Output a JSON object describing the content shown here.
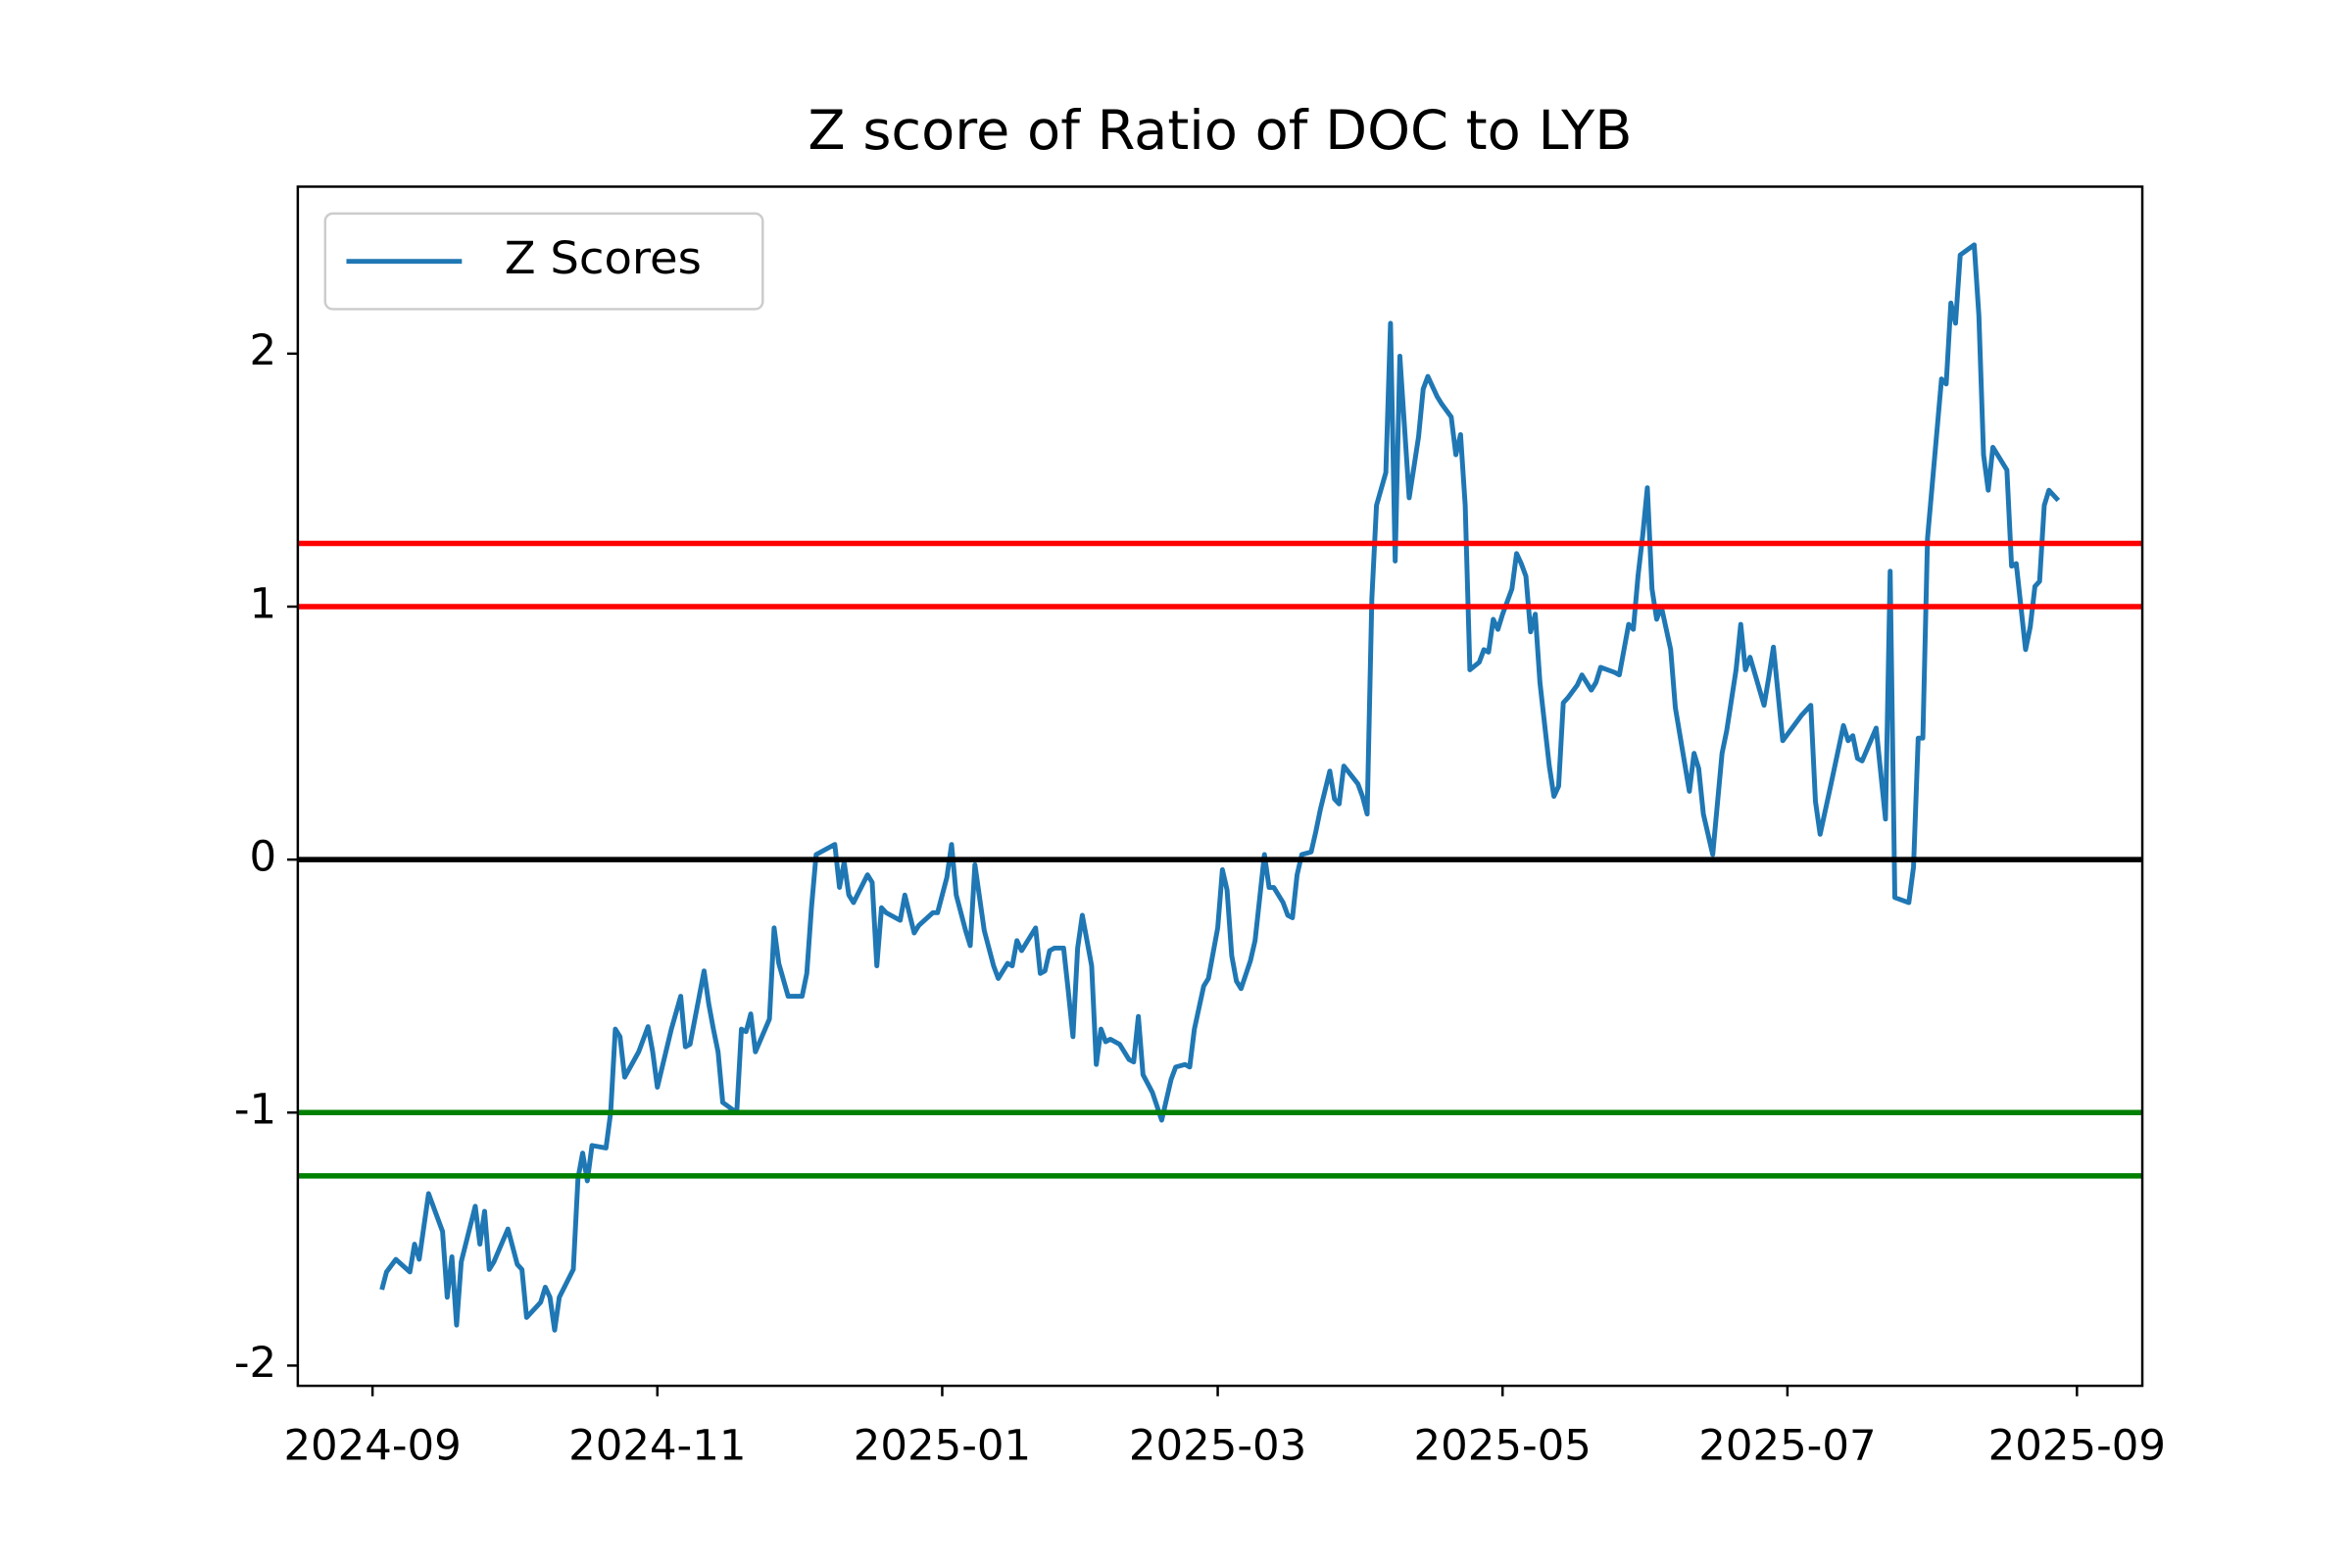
{
  "chart_data": {
    "type": "line",
    "title": "Z score of Ratio of DOC to LYB",
    "legend": "upper left",
    "xlim": [
      "2024-08-16",
      "2025-09-15"
    ],
    "ylim": [
      -2.08,
      2.66
    ],
    "xticks": [
      {
        "value": "2024-09-01",
        "label": "2024-09"
      },
      {
        "value": "2024-11-01",
        "label": "2024-11"
      },
      {
        "value": "2025-01-01",
        "label": "2025-01"
      },
      {
        "value": "2025-03-01",
        "label": "2025-03"
      },
      {
        "value": "2025-05-01",
        "label": "2025-05"
      },
      {
        "value": "2025-07-01",
        "label": "2025-07"
      },
      {
        "value": "2025-09-01",
        "label": "2025-09"
      }
    ],
    "yticks": [
      -2,
      -1,
      0,
      1,
      2
    ],
    "hlines": [
      {
        "value": 0,
        "color": "#000000"
      },
      {
        "value": 1.0,
        "color": "#ff0000"
      },
      {
        "value": 1.25,
        "color": "#ff0000"
      },
      {
        "value": -1.0,
        "color": "#008000"
      },
      {
        "value": -1.25,
        "color": "#008000"
      }
    ],
    "x": [
      "2024-09-03",
      "2024-09-04",
      "2024-09-06",
      "2024-09-09",
      "2024-09-10",
      "2024-09-11",
      "2024-09-13",
      "2024-09-16",
      "2024-09-17",
      "2024-09-18",
      "2024-09-19",
      "2024-09-20",
      "2024-09-23",
      "2024-09-24",
      "2024-09-25",
      "2024-09-26",
      "2024-09-27",
      "2024-09-30",
      "2024-10-02",
      "2024-10-03",
      "2024-10-04",
      "2024-10-07",
      "2024-10-08",
      "2024-10-09",
      "2024-10-10",
      "2024-10-11",
      "2024-10-14",
      "2024-10-15",
      "2024-10-16",
      "2024-10-17",
      "2024-10-18",
      "2024-10-21",
      "2024-10-22",
      "2024-10-23",
      "2024-10-24",
      "2024-10-25",
      "2024-10-28",
      "2024-10-30",
      "2024-10-31",
      "2024-11-01",
      "2024-11-04",
      "2024-11-06",
      "2024-11-07",
      "2024-11-08",
      "2024-11-11",
      "2024-11-12",
      "2024-11-13",
      "2024-11-14",
      "2024-11-15",
      "2024-11-18",
      "2024-11-19",
      "2024-11-20",
      "2024-11-21",
      "2024-11-22",
      "2024-11-25",
      "2024-11-26",
      "2024-11-27",
      "2024-11-29",
      "2024-12-02",
      "2024-12-03",
      "2024-12-04",
      "2024-12-05",
      "2024-12-09",
      "2024-12-10",
      "2024-12-11",
      "2024-12-12",
      "2024-12-13",
      "2024-12-16",
      "2024-12-17",
      "2024-12-18",
      "2024-12-19",
      "2024-12-20",
      "2024-12-23",
      "2024-12-24",
      "2024-12-26",
      "2024-12-27",
      "2024-12-30",
      "2024-12-31",
      "2025-01-02",
      "2025-01-03",
      "2025-01-04",
      "2025-01-06",
      "2025-01-07",
      "2025-01-08",
      "2025-01-10",
      "2025-01-12",
      "2025-01-13",
      "2025-01-15",
      "2025-01-16",
      "2025-01-17",
      "2025-01-18",
      "2025-01-19",
      "2025-01-21",
      "2025-01-22",
      "2025-01-23",
      "2025-01-24",
      "2025-01-25",
      "2025-01-27",
      "2025-01-28",
      "2025-01-29",
      "2025-01-30",
      "2025-01-31",
      "2025-02-02",
      "2025-02-03",
      "2025-02-04",
      "2025-02-05",
      "2025-02-06",
      "2025-02-08",
      "2025-02-10",
      "2025-02-11",
      "2025-02-12",
      "2025-02-13",
      "2025-02-15",
      "2025-02-17",
      "2025-02-18",
      "2025-02-19",
      "2025-02-20",
      "2025-02-22",
      "2025-02-23",
      "2025-02-24",
      "2025-02-26",
      "2025-02-27",
      "2025-03-01",
      "2025-03-02",
      "2025-03-03",
      "2025-03-04",
      "2025-03-05",
      "2025-03-06",
      "2025-03-08",
      "2025-03-09",
      "2025-03-11",
      "2025-03-12",
      "2025-03-13",
      "2025-03-15",
      "2025-03-16",
      "2025-03-17",
      "2025-03-18",
      "2025-03-19",
      "2025-03-21",
      "2025-03-22",
      "2025-03-23",
      "2025-03-25",
      "2025-03-26",
      "2025-03-27",
      "2025-03-28",
      "2025-03-31",
      "2025-04-01",
      "2025-04-02",
      "2025-04-03",
      "2025-04-04",
      "2025-04-06",
      "2025-04-07",
      "2025-04-08",
      "2025-04-09",
      "2025-04-11",
      "2025-04-12",
      "2025-04-13",
      "2025-04-14",
      "2025-04-15",
      "2025-04-17",
      "2025-04-18",
      "2025-04-20",
      "2025-04-21",
      "2025-04-22",
      "2025-04-23",
      "2025-04-24",
      "2025-04-26",
      "2025-04-27",
      "2025-04-28",
      "2025-04-29",
      "2025-04-30",
      "2025-05-01",
      "2025-05-03",
      "2025-05-04",
      "2025-05-05",
      "2025-05-06",
      "2025-05-07",
      "2025-05-08",
      "2025-05-09",
      "2025-05-11",
      "2025-05-12",
      "2025-05-13",
      "2025-05-14",
      "2025-05-15",
      "2025-05-17",
      "2025-05-18",
      "2025-05-20",
      "2025-05-21",
      "2025-05-22",
      "2025-05-25",
      "2025-05-26",
      "2025-05-28",
      "2025-05-29",
      "2025-05-30",
      "2025-05-31",
      "2025-06-01",
      "2025-06-02",
      "2025-06-03",
      "2025-06-04",
      "2025-06-06",
      "2025-06-07",
      "2025-06-10",
      "2025-06-11",
      "2025-06-12",
      "2025-06-13",
      "2025-06-15",
      "2025-06-17",
      "2025-06-18",
      "2025-06-20",
      "2025-06-21",
      "2025-06-22",
      "2025-06-23",
      "2025-06-26",
      "2025-06-27",
      "2025-06-28",
      "2025-06-30",
      "2025-07-02",
      "2025-07-04",
      "2025-07-06",
      "2025-07-07",
      "2025-07-08",
      "2025-07-10",
      "2025-07-13",
      "2025-07-14",
      "2025-07-15",
      "2025-07-16",
      "2025-07-17",
      "2025-07-20",
      "2025-07-22",
      "2025-07-23",
      "2025-07-24",
      "2025-07-27",
      "2025-07-28",
      "2025-07-29",
      "2025-07-30",
      "2025-07-31",
      "2025-08-03",
      "2025-08-04",
      "2025-08-05",
      "2025-08-06",
      "2025-08-07",
      "2025-08-10",
      "2025-08-11",
      "2025-08-12",
      "2025-08-13",
      "2025-08-14",
      "2025-08-17",
      "2025-08-18",
      "2025-08-19",
      "2025-08-21",
      "2025-08-22",
      "2025-08-23",
      "2025-08-24",
      "2025-08-25",
      "2025-08-26",
      "2025-08-28"
    ],
    "series": [
      {
        "name": "Z Scores",
        "color": "#1f77b4",
        "values": [
          -1.7,
          -1.63,
          -1.58,
          -1.63,
          -1.52,
          -1.58,
          -1.32,
          -1.47,
          -1.73,
          -1.57,
          -1.84,
          -1.59,
          -1.37,
          -1.52,
          -1.39,
          -1.62,
          -1.59,
          -1.46,
          -1.6,
          -1.62,
          -1.81,
          -1.75,
          -1.69,
          -1.73,
          -1.86,
          -1.73,
          -1.62,
          -1.26,
          -1.16,
          -1.27,
          -1.13,
          -1.14,
          -1.0,
          -0.67,
          -0.7,
          -0.86,
          -0.76,
          -0.66,
          -0.76,
          -0.9,
          -0.67,
          -0.54,
          -0.74,
          -0.73,
          -0.44,
          -0.57,
          -0.67,
          -0.76,
          -0.96,
          -1.0,
          -0.67,
          -0.68,
          -0.61,
          -0.76,
          -0.63,
          -0.27,
          -0.41,
          -0.54,
          -0.54,
          -0.45,
          -0.19,
          0.02,
          0.06,
          -0.11,
          -0.01,
          -0.14,
          -0.17,
          -0.06,
          -0.09,
          -0.42,
          -0.19,
          -0.21,
          -0.24,
          -0.14,
          -0.29,
          -0.26,
          -0.21,
          -0.21,
          -0.07,
          0.06,
          -0.14,
          -0.28,
          -0.34,
          -0.02,
          -0.28,
          -0.42,
          -0.47,
          -0.41,
          -0.42,
          -0.32,
          -0.36,
          -0.33,
          -0.27,
          -0.45,
          -0.44,
          -0.36,
          -0.35,
          -0.35,
          -0.52,
          -0.7,
          -0.35,
          -0.22,
          -0.42,
          -0.81,
          -0.67,
          -0.72,
          -0.71,
          -0.73,
          -0.79,
          -0.8,
          -0.62,
          -0.85,
          -0.92,
          -1.03,
          -0.95,
          -0.87,
          -0.82,
          -0.81,
          -0.82,
          -0.67,
          -0.5,
          -0.47,
          -0.27,
          -0.04,
          -0.12,
          -0.38,
          -0.48,
          -0.51,
          -0.4,
          -0.32,
          0.02,
          -0.11,
          -0.11,
          -0.17,
          -0.22,
          -0.23,
          -0.06,
          0.02,
          0.03,
          0.11,
          0.2,
          0.35,
          0.24,
          0.22,
          0.37,
          0.3,
          0.25,
          0.18,
          1.03,
          1.4,
          1.53,
          2.12,
          1.18,
          1.99,
          1.43,
          1.55,
          1.67,
          1.86,
          1.91,
          1.83,
          1.8,
          1.75,
          1.6,
          1.68,
          1.4,
          0.75,
          0.78,
          0.83,
          0.82,
          0.95,
          0.91,
          0.97,
          1.07,
          1.21,
          1.17,
          1.12,
          0.9,
          0.97,
          0.7,
          0.37,
          0.25,
          0.29,
          0.62,
          0.64,
          0.69,
          0.73,
          0.67,
          0.7,
          0.76,
          0.74,
          0.73,
          0.93,
          0.91,
          1.12,
          1.28,
          1.47,
          1.07,
          0.95,
          1.0,
          0.83,
          0.6,
          0.27,
          0.42,
          0.36,
          0.18,
          0.02,
          0.42,
          0.51,
          0.75,
          0.93,
          0.75,
          0.8,
          0.61,
          0.72,
          0.84,
          0.47,
          0.52,
          0.57,
          0.61,
          0.23,
          0.1,
          0.27,
          0.53,
          0.47,
          0.49,
          0.4,
          0.39,
          0.52,
          0.16,
          1.14,
          -0.15,
          -0.17,
          -0.03,
          0.48,
          0.48,
          1.27,
          1.9,
          1.88,
          2.2,
          2.12,
          2.39,
          2.43,
          2.15,
          1.6,
          1.46,
          1.63,
          1.54,
          1.16,
          1.17,
          0.83,
          0.92,
          1.08,
          1.1,
          1.4,
          1.46,
          1.42
        ]
      }
    ]
  }
}
